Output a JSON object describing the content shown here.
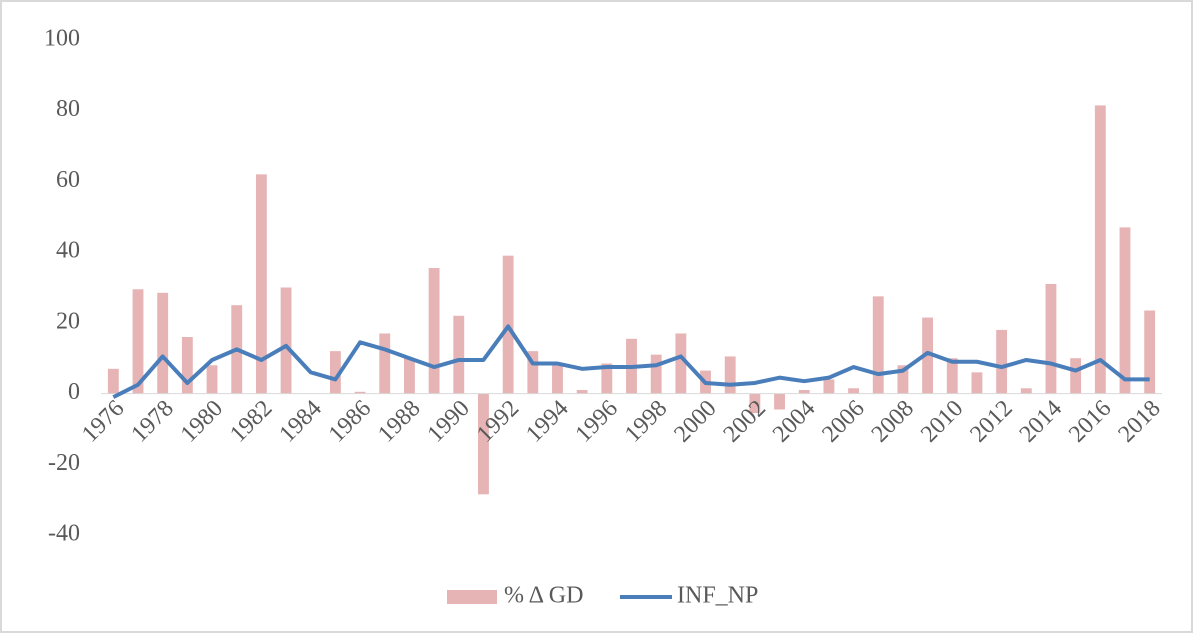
{
  "chart_data": {
    "type": "bar",
    "categories": [
      "1976",
      null,
      "1978",
      null,
      "1980",
      null,
      "1982",
      null,
      "1984",
      null,
      "1986",
      null,
      "1988",
      null,
      "1990",
      null,
      "1992",
      null,
      "1994",
      null,
      "1996",
      null,
      "1998",
      null,
      "2000",
      null,
      "2002",
      null,
      "2004",
      null,
      "2006",
      null,
      "2008",
      null,
      "2010",
      null,
      "2012",
      null,
      "2014",
      null,
      "2016",
      null,
      "2018"
    ],
    "series": [
      {
        "name": "% Δ GD",
        "type": "bar",
        "color": "#e6b4b4",
        "values": [
          7,
          29.5,
          28.5,
          16,
          8,
          25,
          62,
          30,
          0,
          12,
          0.5,
          17,
          10,
          35.5,
          22,
          -28.5,
          39,
          12,
          8,
          1,
          8.5,
          15.5,
          11,
          17,
          6.5,
          10.5,
          -5.5,
          -4.5,
          1,
          4,
          1.5,
          27.5,
          8,
          21.5,
          10,
          6,
          18,
          1.5,
          31,
          10,
          81.5,
          47,
          23.5
        ]
      },
      {
        "name": "INF_NP",
        "type": "line",
        "color": "#4a7ebb",
        "values": [
          -1,
          2.5,
          10.5,
          3,
          9.5,
          12.5,
          9.5,
          13.5,
          6,
          4,
          14.5,
          12.5,
          10,
          7.5,
          9.5,
          9.5,
          19,
          8.5,
          8.5,
          7,
          7.5,
          7.5,
          8,
          10.5,
          3,
          2.5,
          3,
          4.5,
          3.5,
          4.5,
          7.5,
          5.5,
          6.5,
          11.5,
          9,
          9,
          7.5,
          9.5,
          8.5,
          6.5,
          9.5,
          4,
          4
        ]
      }
    ],
    "ylim": [
      -40,
      100
    ],
    "yticks": [
      -40,
      -20,
      0,
      20,
      40,
      60,
      80,
      100
    ],
    "grid": false,
    "legend": "bottom"
  }
}
